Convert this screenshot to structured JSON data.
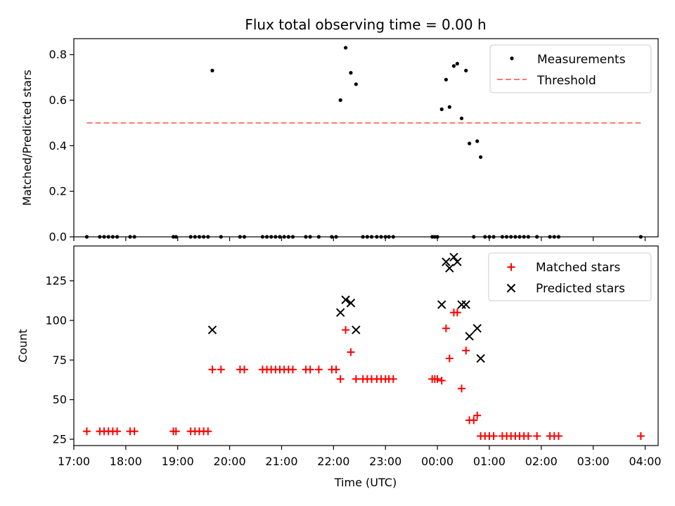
{
  "chart_data": [
    {
      "type": "scatter",
      "title": "Flux total observing time = 0.00 h",
      "xlabel": "",
      "ylabel": "Matched/Predicted stars",
      "xlim": [
        "17:00",
        "04:15"
      ],
      "ylim": [
        0,
        0.87
      ],
      "yticks": [
        "0.0",
        "0.2",
        "0.4",
        "0.6",
        "0.8"
      ],
      "legend_position": "top-right",
      "grid": false,
      "series": [
        {
          "name": "Measurements",
          "kind": "dot",
          "color": "#000000",
          "points": [
            [
              "17:15",
              0
            ],
            [
              "17:30",
              0
            ],
            [
              "17:35",
              0
            ],
            [
              "17:40",
              0
            ],
            [
              "17:45",
              0
            ],
            [
              "17:50",
              0
            ],
            [
              "18:05",
              0
            ],
            [
              "18:10",
              0
            ],
            [
              "18:55",
              0
            ],
            [
              "18:58",
              0
            ],
            [
              "19:15",
              0
            ],
            [
              "19:20",
              0
            ],
            [
              "19:25",
              0
            ],
            [
              "19:30",
              0
            ],
            [
              "19:35",
              0
            ],
            [
              "19:50",
              0
            ],
            [
              "19:40",
              0.73
            ],
            [
              "20:12",
              0
            ],
            [
              "20:17",
              0
            ],
            [
              "20:38",
              0
            ],
            [
              "20:43",
              0
            ],
            [
              "20:48",
              0
            ],
            [
              "20:53",
              0
            ],
            [
              "20:58",
              0
            ],
            [
              "21:03",
              0
            ],
            [
              "21:08",
              0
            ],
            [
              "21:13",
              0
            ],
            [
              "21:28",
              0
            ],
            [
              "21:33",
              0
            ],
            [
              "21:43",
              0
            ],
            [
              "21:58",
              0
            ],
            [
              "22:03",
              0
            ],
            [
              "22:08",
              0.6
            ],
            [
              "22:14",
              0.83
            ],
            [
              "22:20",
              0.72
            ],
            [
              "22:26",
              0.67
            ],
            [
              "22:34",
              0
            ],
            [
              "22:39",
              0
            ],
            [
              "22:44",
              0
            ],
            [
              "22:50",
              0
            ],
            [
              "22:55",
              0
            ],
            [
              "23:00",
              0
            ],
            [
              "23:04",
              0
            ],
            [
              "23:09",
              0
            ],
            [
              "23:54",
              0
            ],
            [
              "23:57",
              0
            ],
            [
              "00:00",
              0
            ],
            [
              "00:05",
              0.56
            ],
            [
              "00:10",
              0.69
            ],
            [
              "00:14",
              0.57
            ],
            [
              "00:19",
              0.75
            ],
            [
              "00:23",
              0.76
            ],
            [
              "00:28",
              0.52
            ],
            [
              "00:33",
              0.73
            ],
            [
              "00:37",
              0.41
            ],
            [
              "00:46",
              0.42
            ],
            [
              "00:50",
              0.35
            ],
            [
              "00:42",
              0
            ],
            [
              "00:55",
              0
            ],
            [
              "01:00",
              0
            ],
            [
              "01:05",
              0
            ],
            [
              "01:15",
              0
            ],
            [
              "01:20",
              0
            ],
            [
              "01:25",
              0
            ],
            [
              "01:30",
              0
            ],
            [
              "01:35",
              0
            ],
            [
              "01:40",
              0
            ],
            [
              "01:45",
              0
            ],
            [
              "01:55",
              0
            ],
            [
              "02:10",
              0
            ],
            [
              "02:15",
              0
            ],
            [
              "02:20",
              0
            ],
            [
              "03:55",
              0
            ]
          ]
        },
        {
          "name": "Threshold",
          "kind": "dashed-line",
          "color": "#ff7777",
          "points": [
            [
              "17:15",
              0.5
            ],
            [
              "03:55",
              0.5
            ]
          ]
        }
      ]
    },
    {
      "type": "scatter",
      "title": "",
      "xlabel": "Time (UTC)",
      "ylabel": "Count",
      "xlim": [
        "17:00",
        "04:15"
      ],
      "ylim": [
        21,
        147
      ],
      "yticks": [
        "25",
        "50",
        "75",
        "100",
        "125"
      ],
      "xticks": [
        "17:00",
        "18:00",
        "19:00",
        "20:00",
        "21:00",
        "22:00",
        "23:00",
        "00:00",
        "01:00",
        "02:00",
        "03:00",
        "04:00"
      ],
      "legend_position": "top-right",
      "grid": false,
      "series": [
        {
          "name": "Matched stars",
          "kind": "plus",
          "color": "#ff0000",
          "points": [
            [
              "17:15",
              30
            ],
            [
              "17:30",
              30
            ],
            [
              "17:35",
              30
            ],
            [
              "17:40",
              30
            ],
            [
              "17:45",
              30
            ],
            [
              "17:50",
              30
            ],
            [
              "18:05",
              30
            ],
            [
              "18:10",
              30
            ],
            [
              "18:55",
              30
            ],
            [
              "18:58",
              30
            ],
            [
              "19:15",
              30
            ],
            [
              "19:20",
              30
            ],
            [
              "19:25",
              30
            ],
            [
              "19:30",
              30
            ],
            [
              "19:35",
              30
            ],
            [
              "19:40",
              69
            ],
            [
              "19:50",
              69
            ],
            [
              "20:12",
              69
            ],
            [
              "20:17",
              69
            ],
            [
              "20:38",
              69
            ],
            [
              "20:43",
              69
            ],
            [
              "20:48",
              69
            ],
            [
              "20:53",
              69
            ],
            [
              "20:58",
              69
            ],
            [
              "21:03",
              69
            ],
            [
              "21:08",
              69
            ],
            [
              "21:13",
              69
            ],
            [
              "21:28",
              69
            ],
            [
              "21:33",
              69
            ],
            [
              "21:43",
              69
            ],
            [
              "21:58",
              69
            ],
            [
              "22:03",
              69
            ],
            [
              "22:08",
              63
            ],
            [
              "22:14",
              94
            ],
            [
              "22:20",
              80
            ],
            [
              "22:26",
              63
            ],
            [
              "22:34",
              63
            ],
            [
              "22:39",
              63
            ],
            [
              "22:44",
              63
            ],
            [
              "22:50",
              63
            ],
            [
              "22:55",
              63
            ],
            [
              "23:00",
              63
            ],
            [
              "23:04",
              63
            ],
            [
              "23:09",
              63
            ],
            [
              "23:54",
              63
            ],
            [
              "23:57",
              63
            ],
            [
              "00:00",
              63
            ],
            [
              "00:05",
              62
            ],
            [
              "00:10",
              95
            ],
            [
              "00:14",
              76
            ],
            [
              "00:19",
              105
            ],
            [
              "00:23",
              105
            ],
            [
              "00:28",
              57
            ],
            [
              "00:33",
              81
            ],
            [
              "00:37",
              37
            ],
            [
              "00:42",
              37
            ],
            [
              "00:46",
              40
            ],
            [
              "00:50",
              27
            ],
            [
              "00:55",
              27
            ],
            [
              "01:00",
              27
            ],
            [
              "01:05",
              27
            ],
            [
              "01:15",
              27
            ],
            [
              "01:20",
              27
            ],
            [
              "01:25",
              27
            ],
            [
              "01:30",
              27
            ],
            [
              "01:35",
              27
            ],
            [
              "01:40",
              27
            ],
            [
              "01:45",
              27
            ],
            [
              "01:55",
              27
            ],
            [
              "02:10",
              27
            ],
            [
              "02:15",
              27
            ],
            [
              "02:20",
              27
            ],
            [
              "03:55",
              27
            ]
          ]
        },
        {
          "name": "Predicted stars",
          "kind": "x",
          "color": "#000000",
          "points": [
            [
              "19:40",
              94
            ],
            [
              "22:08",
              105
            ],
            [
              "22:14",
              113
            ],
            [
              "22:20",
              111
            ],
            [
              "22:26",
              94
            ],
            [
              "00:05",
              110
            ],
            [
              "00:10",
              137
            ],
            [
              "00:14",
              133
            ],
            [
              "00:19",
              140
            ],
            [
              "00:23",
              137
            ],
            [
              "00:28",
              110
            ],
            [
              "00:33",
              110
            ],
            [
              "00:37",
              90
            ],
            [
              "00:46",
              95
            ],
            [
              "00:50",
              76
            ]
          ]
        }
      ]
    }
  ]
}
